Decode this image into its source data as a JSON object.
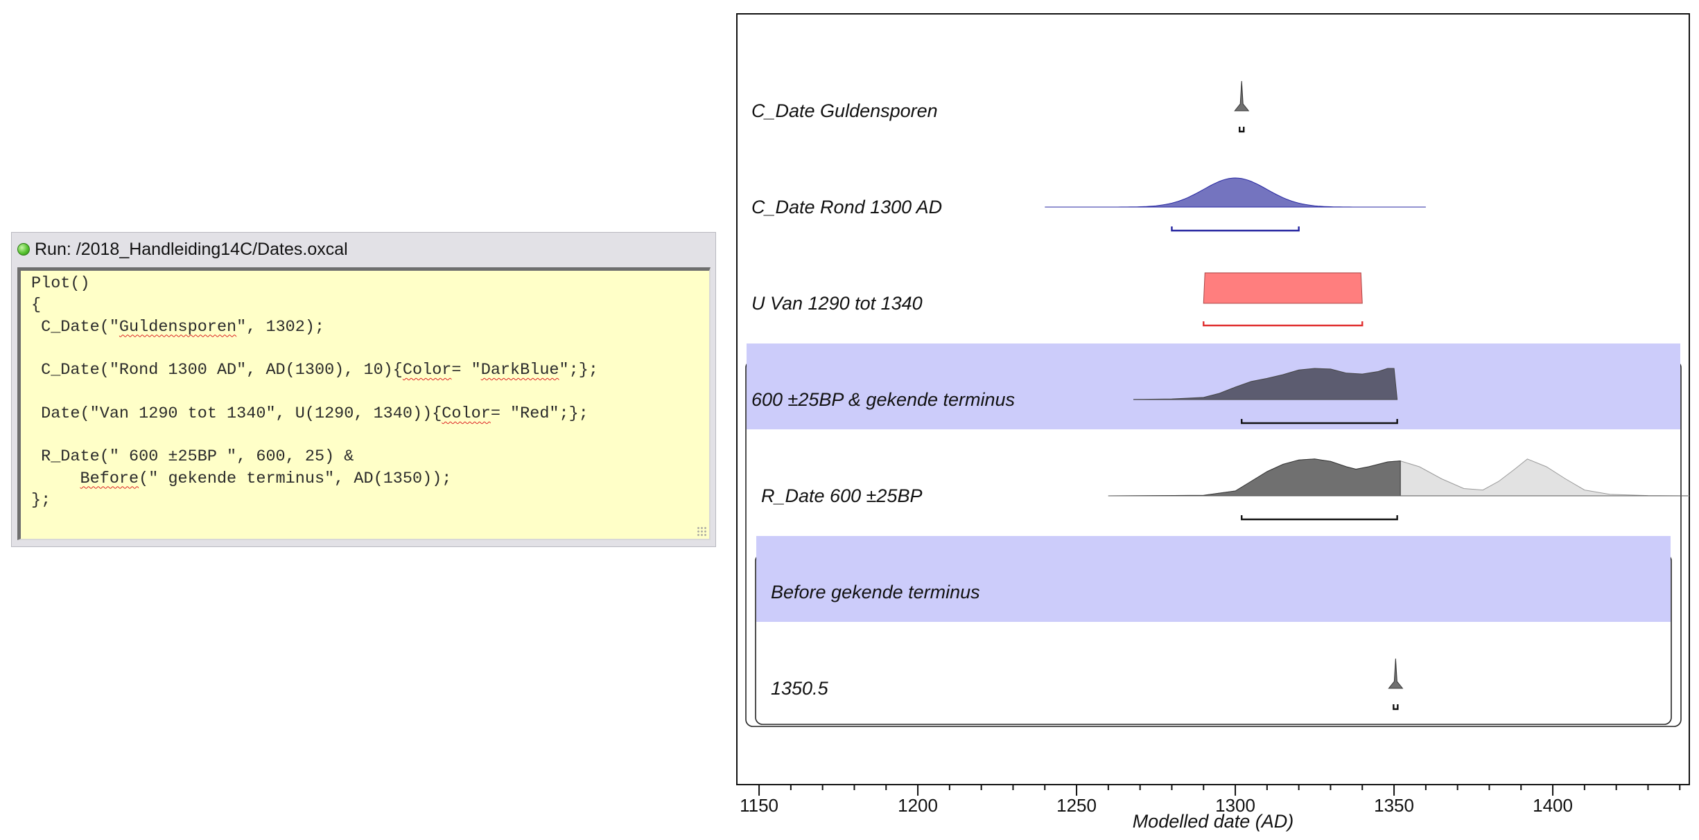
{
  "run_window": {
    "title": "Run: /2018_Handleiding14C/Dates.oxcal",
    "code_lines": [
      [
        {
          "t": "Plot()"
        }
      ],
      [
        {
          "t": "{"
        }
      ],
      [
        {
          "t": " C_Date(\""
        },
        {
          "t": "Guldensporen",
          "sq": true
        },
        {
          "t": "\", 1302);"
        }
      ],
      [
        {
          "t": ""
        }
      ],
      [
        {
          "t": " C_Date(\"Rond 1300 AD\", AD(1300), 10){"
        },
        {
          "t": "Color",
          "sq": true
        },
        {
          "t": "= \""
        },
        {
          "t": "DarkBlue",
          "sq": true
        },
        {
          "t": "\";};"
        }
      ],
      [
        {
          "t": ""
        }
      ],
      [
        {
          "t": " Date(\"Van 1290 tot 1340\", U(1290, 1340)){"
        },
        {
          "t": "Color",
          "sq": true
        },
        {
          "t": "= \"Red\";};"
        }
      ],
      [
        {
          "t": ""
        }
      ],
      [
        {
          "t": " R_Date(\" 600 ±25BP \", 600, 25) &"
        }
      ],
      [
        {
          "t": "     "
        },
        {
          "t": "Before",
          "sq": true
        },
        {
          "t": "(\" gekende terminus\", AD(1350));"
        }
      ],
      [
        {
          "t": "};"
        }
      ]
    ]
  },
  "chart_data": {
    "type": "area",
    "xlabel": "Modelled date (AD)",
    "xlim": [
      1143,
      1443
    ],
    "x_ticks": [
      1150,
      1200,
      1250,
      1300,
      1350,
      1400
    ],
    "minor_tick_step": 10,
    "colors": {
      "group_band": "#ccccfa",
      "darkblue_fill": "#7474bf",
      "darkblue_line": "#2424a0",
      "red_fill": "#ff7e7e",
      "red_line": "#e03030",
      "posterior_fill": "#5c5c70",
      "unmodelled_fill": "#e2e2e2",
      "default_fill": "#707070"
    },
    "rows": [
      {
        "label": "C_Date Guldensporen",
        "kind": "spike",
        "center": 1302,
        "range": [
          1301.5,
          1302.5
        ],
        "fill": "#707070",
        "range_color": "#111111"
      },
      {
        "label": "C_Date Rond 1300 AD",
        "kind": "normal",
        "mean": 1300,
        "sd": 10,
        "extent": [
          1240,
          1360
        ],
        "fill": "#7474bf",
        "range": [
          1280,
          1320
        ],
        "range_color": "#2424a0"
      },
      {
        "label": "U Van 1290 tot 1340",
        "kind": "uniform",
        "from": 1290,
        "to": 1340,
        "fill": "#ff7e7e",
        "range": [
          1290,
          1340
        ],
        "range_color": "#e03030"
      },
      {
        "label": "600 ±25BP & gekende terminus",
        "kind": "curve",
        "group": "outer",
        "band": true,
        "fill": "#5c5c70",
        "points": [
          [
            1268,
            0.005
          ],
          [
            1280,
            0.02
          ],
          [
            1290,
            0.07
          ],
          [
            1295,
            0.2
          ],
          [
            1300,
            0.4
          ],
          [
            1305,
            0.58
          ],
          [
            1310,
            0.68
          ],
          [
            1315,
            0.8
          ],
          [
            1320,
            0.95
          ],
          [
            1325,
            1.0
          ],
          [
            1330,
            0.98
          ],
          [
            1335,
            0.85
          ],
          [
            1340,
            0.82
          ],
          [
            1345,
            0.9
          ],
          [
            1348,
            1.0
          ],
          [
            1350,
            1.0
          ],
          [
            1351,
            0
          ]
        ],
        "range": [
          1302,
          1351
        ],
        "range_color": "#111111"
      },
      {
        "label": "R_Date 600 ±25BP",
        "kind": "curve",
        "group": "outer",
        "band": false,
        "fill": "#707070",
        "unmodelled": [
          [
            1260,
            0.0
          ],
          [
            1290,
            0.01
          ],
          [
            1300,
            0.1
          ],
          [
            1305,
            0.3
          ],
          [
            1310,
            0.5
          ],
          [
            1315,
            0.65
          ],
          [
            1320,
            0.74
          ],
          [
            1325,
            0.76
          ],
          [
            1330,
            0.71
          ],
          [
            1335,
            0.6
          ],
          [
            1338,
            0.55
          ],
          [
            1342,
            0.6
          ],
          [
            1348,
            0.7
          ],
          [
            1352,
            0.72
          ],
          [
            1358,
            0.6
          ],
          [
            1365,
            0.35
          ],
          [
            1372,
            0.15
          ],
          [
            1378,
            0.12
          ],
          [
            1383,
            0.3
          ],
          [
            1388,
            0.55
          ],
          [
            1392,
            0.76
          ],
          [
            1398,
            0.6
          ],
          [
            1404,
            0.35
          ],
          [
            1410,
            0.12
          ],
          [
            1418,
            0.03
          ],
          [
            1430,
            0.005
          ],
          [
            1443,
            0.0
          ]
        ],
        "posterior_until": 1352,
        "range": [
          1302,
          1351
        ],
        "range_color": "#111111"
      },
      {
        "label": "Before gekende terminus",
        "kind": "none",
        "group": "inner",
        "band": true
      },
      {
        "label": "1350.5",
        "kind": "spike",
        "group": "inner",
        "center": 1350.5,
        "range": [
          1350,
          1351
        ],
        "fill": "#707070",
        "range_color": "#111111"
      }
    ]
  }
}
